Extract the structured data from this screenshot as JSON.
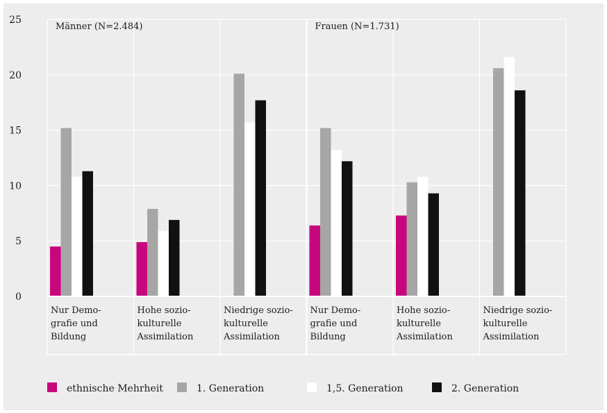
{
  "chart_data": {
    "type": "bar",
    "group_titles": [
      "Männer (N=2.484)",
      "Frauen (N=1.731)"
    ],
    "categories": [
      [
        "Nur Demo-",
        "grafie und",
        "Bildung"
      ],
      [
        "Hohe sozio-",
        "kulturelle",
        "Assimilation"
      ],
      [
        "Niedrige sozio-",
        "kulturelle",
        "Assimilation"
      ],
      [
        "Nur Demo-",
        "grafie und",
        "Bildung"
      ],
      [
        "Hohe sozio-",
        "kulturelle",
        "Assimilation"
      ],
      [
        "Niedrige sozio-",
        "kulturelle",
        "Assimilation"
      ]
    ],
    "series": [
      {
        "name": "ethnische Mehrheit",
        "color": "#c8067e",
        "values": [
          4.5,
          4.9,
          null,
          6.4,
          7.3,
          null
        ]
      },
      {
        "name": "1. Generation",
        "color": "#a6a6a6",
        "values": [
          15.2,
          7.9,
          20.1,
          15.2,
          10.3,
          20.6
        ]
      },
      {
        "name": "1,5. Generation",
        "color": "#ffffff",
        "values": [
          10.8,
          5.9,
          15.7,
          13.2,
          10.8,
          21.6
        ]
      },
      {
        "name": "2. Generation",
        "color": "#111111",
        "values": [
          11.3,
          6.9,
          17.7,
          12.2,
          9.3,
          18.6
        ]
      }
    ],
    "ylim": [
      0,
      25
    ],
    "yticks": [
      0,
      5,
      10,
      15,
      20,
      25
    ],
    "grid": true,
    "legend_position": "bottom"
  }
}
